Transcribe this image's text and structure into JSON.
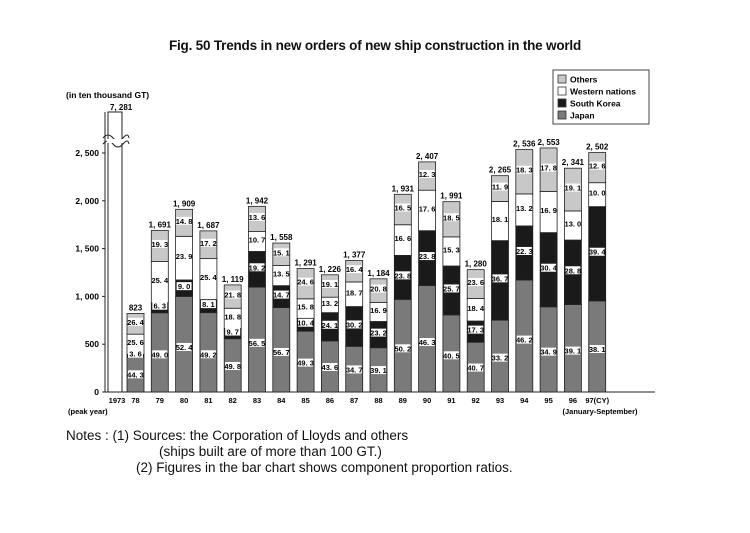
{
  "chart_data": {
    "type": "bar",
    "stacked": true,
    "title": "Fig. 50 Trends in new orders of new ship construction in the world",
    "ylabel": "(in ten thousand GT)",
    "xlabel": "",
    "ylim": [
      0,
      2800
    ],
    "yticks": [
      0,
      500,
      1000,
      1500,
      2000,
      2500
    ],
    "ytick_labels": [
      "0",
      "500",
      "1, 000",
      "1, 500",
      "2, 000",
      "2, 500"
    ],
    "categories": [
      "1973",
      "78",
      "79",
      "80",
      "81",
      "82",
      "83",
      "84",
      "85",
      "86",
      "87",
      "88",
      "89",
      "90",
      "91",
      "92",
      "93",
      "94",
      "95",
      "96",
      "97(CY)"
    ],
    "category_notes": {
      "first": "(peak year)",
      "last": "(January-September)"
    },
    "totals": [
      7281,
      823,
      1691,
      1909,
      1687,
      1119,
      1942,
      1558,
      1291,
      1226,
      1377,
      1184,
      1931,
      2407,
      1991,
      1280,
      2265,
      2536,
      2553,
      2341,
      2502
    ],
    "total_labels": [
      "7, 281",
      "823",
      "1, 691",
      "1, 909",
      "1, 687",
      "1, 119",
      "1, 942",
      "1, 558",
      "1, 291",
      "1, 226",
      "1, 377",
      "1, 184",
      "1, 931",
      "2, 407",
      "1, 991",
      "1, 280",
      "2, 265",
      "2, 536",
      "2, 553",
      "2, 341",
      "2, 502"
    ],
    "broken_axis_category": "1973",
    "series_unit": "percent share of total",
    "series": [
      {
        "name": "Japan",
        "color": "#7a7a7a",
        "values": [
          null,
          44.3,
          49.0,
          52.4,
          49.2,
          49.8,
          56.5,
          56.7,
          49.3,
          43.6,
          34.7,
          39.1,
          50.2,
          46.3,
          40.5,
          40.7,
          33.2,
          46.2,
          34.9,
          39.1,
          38.1
        ]
      },
      {
        "name": "South Korea",
        "color": "#1a1a1a",
        "values": [
          null,
          3.6,
          6.3,
          9.0,
          8.1,
          9.7,
          19.2,
          14.7,
          10.4,
          24.1,
          30.2,
          23.2,
          23.8,
          23.8,
          25.7,
          17.3,
          36.7,
          22.3,
          30.4,
          28.8,
          39.4
        ]
      },
      {
        "name": "Western nations",
        "color": "#ffffff",
        "values": [
          null,
          25.6,
          25.4,
          23.9,
          25.4,
          18.8,
          10.7,
          13.5,
          15.8,
          13.2,
          18.7,
          16.9,
          16.6,
          17.6,
          15.3,
          18.4,
          18.1,
          13.2,
          16.9,
          13.0,
          10.0
        ]
      },
      {
        "name": "Others",
        "color": "#c8c8c8",
        "values": [
          null,
          26.4,
          19.3,
          14.8,
          17.2,
          21.8,
          13.6,
          15.1,
          24.6,
          19.1,
          16.4,
          20.8,
          16.5,
          12.3,
          18.5,
          23.6,
          11.9,
          18.3,
          17.8,
          19.1,
          12.6
        ]
      }
    ],
    "legend": {
      "placement": "top-right",
      "entries": [
        "Others",
        "Western nations",
        "South Korea",
        "Japan"
      ]
    },
    "grid": false
  },
  "notes": {
    "line1": "Notes : (1) Sources: the Corporation of Lloyds and others",
    "line2": "(ships built are of more than 100 GT.)",
    "line3": "(2) Figures in the bar chart shows component proportion ratios."
  }
}
